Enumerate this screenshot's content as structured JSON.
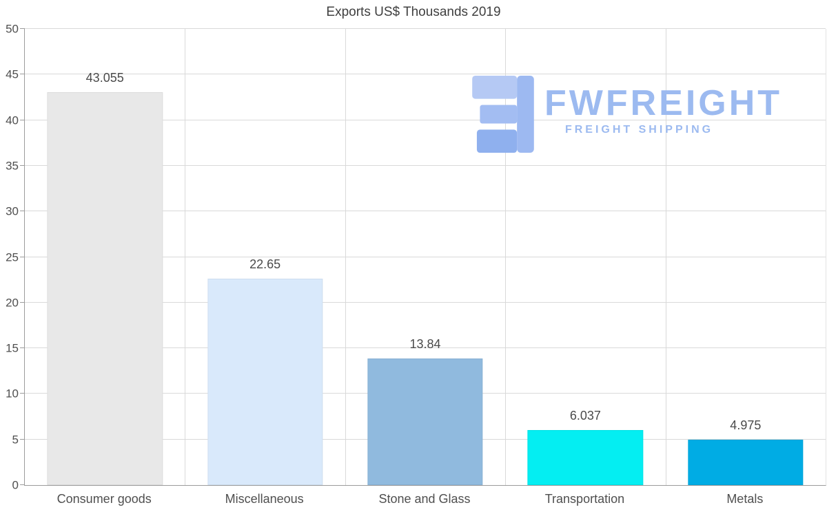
{
  "chart_data": {
    "type": "bar",
    "title": "Exports US$ Thousands 2019",
    "categories": [
      "Consumer goods",
      "Miscellaneous",
      "Stone and Glass",
      "Transportation",
      "Metals"
    ],
    "values": [
      43.055,
      22.65,
      13.84,
      6.037,
      4.975
    ],
    "value_labels": [
      "43.055",
      "22.65",
      "13.84",
      "6.037",
      "4.975"
    ],
    "bar_colors": [
      "#e8e8e8",
      "#d9e9fb",
      "#90bade",
      "#04eef2",
      "#00ace4"
    ],
    "xlabel": "",
    "ylabel": "",
    "ylim": [
      0,
      50
    ],
    "yticks": [
      0,
      5,
      10,
      15,
      20,
      25,
      30,
      35,
      40,
      45,
      50
    ],
    "grid": true,
    "legend": "none",
    "gridline_color": "#d9d9d9",
    "axis_color": "#9b9b9b",
    "label_color": "#4f4f4f"
  },
  "watermark": {
    "brand": "FWFREIGHT",
    "tagline": "FREIGHT SHIPPING",
    "color": "#9cbaf0",
    "logo": "fwfreight-logo"
  }
}
